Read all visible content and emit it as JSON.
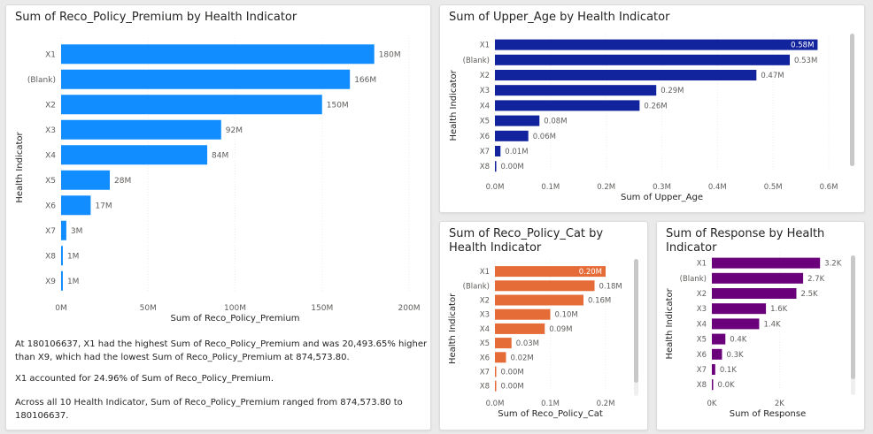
{
  "visuals": {
    "premium": {
      "title": "Sum of Reco_Policy_Premium by Health Indicator",
      "narrative": [
        "At 180106637, X1 had the highest Sum of Reco_Policy_Premium and was 20,493.65% higher than X9, which had the lowest Sum of Reco_Policy_Premium at 874,573.80.",
        "X1 accounted for 24.96% of Sum of Reco_Policy_Premium.",
        "Across all 10 Health Indicator, Sum of Reco_Policy_Premium ranged from 874,573.80 to 180106637."
      ]
    },
    "upper_age": {
      "title": "Sum of Upper_Age by Health Indicator"
    },
    "policy_cat": {
      "title": "Sum of Reco_Policy_Cat by Health Indicator"
    },
    "response": {
      "title": "Sum of Response by Health Indicator"
    }
  },
  "chart_data": [
    {
      "id": "premium",
      "type": "bar",
      "orientation": "horizontal",
      "title": "Sum of Reco_Policy_Premium by Health Indicator",
      "xlabel": "Sum of Reco_Policy_Premium",
      "ylabel": "Health Indicator",
      "color": "#118DFF",
      "categories": [
        "X1",
        "(Blank)",
        "X2",
        "X3",
        "X4",
        "X5",
        "X6",
        "X7",
        "X8",
        "X9"
      ],
      "values": [
        180,
        166,
        150,
        92,
        84,
        28,
        17,
        3,
        1,
        1
      ],
      "labels": [
        "180M",
        "166M",
        "150M",
        "92M",
        "84M",
        "28M",
        "17M",
        "3M",
        "1M",
        "1M"
      ],
      "xlim": [
        0,
        200
      ],
      "ticks": [
        0,
        50,
        100,
        150,
        200
      ],
      "tick_labels": [
        "0M",
        "50M",
        "100M",
        "150M",
        "200M"
      ],
      "grid": true
    },
    {
      "id": "upper_age",
      "type": "bar",
      "orientation": "horizontal",
      "title": "Sum of Upper_Age by Health Indicator",
      "xlabel": "Sum of Upper_Age",
      "ylabel": "Health Indicator",
      "color": "#12239E",
      "categories": [
        "X1",
        "(Blank)",
        "X2",
        "X3",
        "X4",
        "X5",
        "X6",
        "X7",
        "X8"
      ],
      "values": [
        0.58,
        0.53,
        0.47,
        0.29,
        0.26,
        0.08,
        0.06,
        0.01,
        0.001
      ],
      "labels": [
        "0.58M",
        "0.53M",
        "0.47M",
        "0.29M",
        "0.26M",
        "0.08M",
        "0.06M",
        "0.01M",
        "0.00M"
      ],
      "xlim": [
        0,
        0.6
      ],
      "ticks": [
        0,
        0.1,
        0.2,
        0.3,
        0.4,
        0.5,
        0.6
      ],
      "tick_labels": [
        "0.0M",
        "0.1M",
        "0.2M",
        "0.3M",
        "0.4M",
        "0.5M",
        "0.6M"
      ],
      "grid": true
    },
    {
      "id": "policy_cat",
      "type": "bar",
      "orientation": "horizontal",
      "title": "Sum of Reco_Policy_Cat by Health Indicator",
      "xlabel": "Sum of Reco_Policy_Cat",
      "ylabel": "Health Indicator",
      "color": "#E66C37",
      "categories": [
        "X1",
        "(Blank)",
        "X2",
        "X3",
        "X4",
        "X5",
        "X6",
        "X7",
        "X8"
      ],
      "values": [
        0.2,
        0.18,
        0.16,
        0.1,
        0.09,
        0.03,
        0.02,
        0.001,
        0.0005
      ],
      "labels": [
        "0.20M",
        "0.18M",
        "0.16M",
        "0.10M",
        "0.09M",
        "0.03M",
        "0.02M",
        "0.00M",
        "0.00M"
      ],
      "xlim": [
        0,
        0.2
      ],
      "ticks": [
        0,
        0.1,
        0.2
      ],
      "tick_labels": [
        "0.0M",
        "0.1M",
        "0.2M"
      ],
      "grid": true
    },
    {
      "id": "response",
      "type": "bar",
      "orientation": "horizontal",
      "title": "Sum of Response by Health Indicator",
      "xlabel": "Sum of Response",
      "ylabel": "Health Indicator",
      "color": "#6B007B",
      "categories": [
        "X1",
        "(Blank)",
        "X2",
        "X3",
        "X4",
        "X5",
        "X6",
        "X7",
        "X8"
      ],
      "values": [
        3.2,
        2.7,
        2.5,
        1.6,
        1.4,
        0.4,
        0.3,
        0.1,
        0.02
      ],
      "labels": [
        "3.2K",
        "2.7K",
        "2.5K",
        "1.6K",
        "1.4K",
        "0.4K",
        "0.3K",
        "0.1K",
        "0.0K"
      ],
      "xlim": [
        0,
        3.3
      ],
      "ticks": [
        0,
        2
      ],
      "tick_labels": [
        "0K",
        "2K"
      ],
      "grid": true
    }
  ]
}
